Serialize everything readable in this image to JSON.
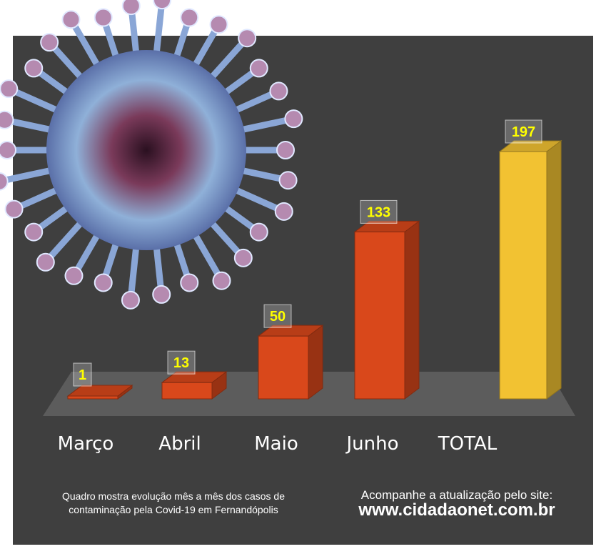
{
  "chart_data": {
    "type": "bar",
    "categories": [
      "Março",
      "Abril",
      "Maio",
      "Junho",
      "TOTAL"
    ],
    "values": [
      1,
      13,
      50,
      133,
      197
    ],
    "colors": [
      "#d9481b",
      "#d9481b",
      "#d9481b",
      "#d9481b",
      "#f2c232"
    ],
    "value_label_color": "#ffff00",
    "background": "#3f3f3f"
  },
  "illustration": {
    "icon": "coronavirus-icon"
  },
  "captions": {
    "left_line1": "Quadro mostra evolução mês a mês dos casos de",
    "left_line2": "contaminação pela Covid-19 em Fernandópolis",
    "right_line1": "Acompanhe a atualização pelo site:",
    "right_site": "www.cidadaonet.com.br"
  }
}
